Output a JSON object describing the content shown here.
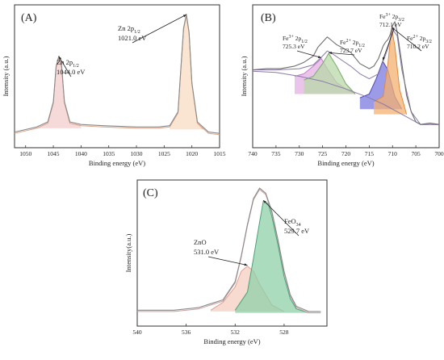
{
  "chart_data": [
    {
      "type": "line",
      "panel_label": "(A)",
      "xlabel": "Binding energy (eV)",
      "ylabel": "Intensity (a.u.)",
      "xlim": [
        1052,
        1015
      ],
      "ylim": [
        0,
        100
      ],
      "xticks": [
        "1050",
        "1045",
        "1040",
        "1035",
        "1030",
        "1025",
        "1020",
        "1015"
      ],
      "series": [
        {
          "role": "measured",
          "color": "#8a8a8a",
          "x": [
            1052,
            1048,
            1046,
            1045,
            1044.5,
            1044,
            1043.5,
            1043,
            1042,
            1040,
            1036,
            1030,
            1026,
            1024,
            1022.5,
            1022,
            1021.5,
            1021,
            1020.5,
            1020,
            1019,
            1017,
            1015
          ],
          "y": [
            6,
            10,
            14,
            30,
            58,
            66,
            58,
            30,
            14,
            12,
            11,
            10,
            10,
            11,
            22,
            55,
            88,
            99,
            85,
            45,
            14,
            6,
            5
          ]
        },
        {
          "role": "fit",
          "color": "#d9a58a",
          "x": [
            1052,
            1048,
            1046,
            1045,
            1044.5,
            1044,
            1043.5,
            1043,
            1042,
            1040,
            1036,
            1030,
            1026,
            1024,
            1022.5,
            1022,
            1021.5,
            1021,
            1020.5,
            1020,
            1019,
            1017,
            1015
          ],
          "y": [
            5,
            9,
            13,
            29,
            57,
            65,
            57,
            29,
            13,
            11,
            10,
            9,
            9,
            10,
            21,
            54,
            87,
            98,
            84,
            44,
            13,
            5,
            4
          ]
        },
        {
          "role": "component",
          "color": "#e8b4b4",
          "fill": "#f3cccc",
          "x": [
            1048,
            1046,
            1045,
            1044.5,
            1044,
            1043.5,
            1043,
            1042,
            1040
          ],
          "y": [
            9,
            13,
            29,
            57,
            65,
            57,
            29,
            13,
            11
          ]
        },
        {
          "role": "component",
          "color": "#f0c7a0",
          "fill": "#f7dcc3",
          "x": [
            1024,
            1022.5,
            1022,
            1021.5,
            1021,
            1020.5,
            1020,
            1019,
            1018
          ],
          "y": [
            10,
            21,
            54,
            87,
            98,
            84,
            44,
            13,
            8
          ]
        }
      ],
      "annotations": [
        {
          "base": "Zn 2p",
          "sub": "1/2",
          "value": "1044.0 eV",
          "x": 1044.0,
          "y": 65
        },
        {
          "base": "Zn 2p",
          "sub": "1/2",
          "value": "1021.0 eV",
          "x": 1021.0,
          "y": 98
        }
      ]
    },
    {
      "type": "line",
      "panel_label": "(B)",
      "xlabel": "Binding energy (eV)",
      "ylabel": "Intensity (a.u.)",
      "xlim": [
        740,
        700
      ],
      "ylim": [
        0,
        100
      ],
      "xticks": [
        "740",
        "735",
        "730",
        "725",
        "720",
        "715",
        "710",
        "705",
        "700"
      ],
      "series": [
        {
          "role": "measured",
          "color": "#6e6e6e",
          "x": [
            740,
            737,
            734,
            731,
            729,
            727,
            726,
            725,
            724,
            723,
            722,
            721,
            719,
            717,
            715,
            714,
            713,
            712,
            711.5,
            711,
            710.5,
            710,
            709.5,
            709,
            708,
            707,
            706,
            705,
            704,
            702,
            700
          ],
          "y": [
            55,
            56,
            56,
            58,
            61,
            66,
            73,
            77,
            81,
            78,
            75,
            73,
            69,
            60,
            56,
            58,
            64,
            74,
            77,
            79,
            83,
            90,
            93,
            85,
            60,
            35,
            22,
            14,
            12,
            13,
            12
          ]
        },
        {
          "role": "envelope",
          "color": "#8a7aa8",
          "x": [
            740,
            735,
            730,
            727,
            725,
            724,
            723,
            721,
            719,
            717,
            715,
            713,
            712,
            711,
            710,
            709,
            708,
            706,
            704,
            702,
            700
          ],
          "y": [
            55,
            55,
            56,
            59,
            66,
            70,
            68,
            63,
            58,
            52,
            48,
            52,
            62,
            72,
            87,
            82,
            55,
            22,
            12,
            12,
            12
          ]
        },
        {
          "role": "background",
          "color": "#8a7aa8",
          "x": [
            740,
            735,
            730,
            725,
            720,
            715,
            712,
            710,
            708,
            706,
            704,
            702,
            700
          ],
          "y": [
            54,
            53,
            50,
            46,
            40,
            33,
            28,
            24,
            20,
            16,
            12,
            12,
            12
          ]
        },
        {
          "role": "component",
          "color": "#c77ac7",
          "fill": "#e3b0e3",
          "x": [
            731,
            729,
            727,
            725.3,
            724,
            722,
            720,
            718
          ],
          "y": [
            50,
            52,
            58,
            64,
            56,
            45,
            40,
            36
          ]
        },
        {
          "role": "component",
          "color": "#7aaa6a",
          "fill": "#b8d8a8",
          "x": [
            729,
            727,
            725,
            723.7,
            722,
            720,
            718
          ],
          "y": [
            47,
            50,
            60,
            68,
            58,
            44,
            36
          ]
        },
        {
          "role": "component",
          "color": "#4a4ab8",
          "fill": "#7a7ae0",
          "x": [
            717,
            715,
            713.5,
            712.1,
            711,
            709.5,
            708
          ],
          "y": [
            33,
            36,
            48,
            62,
            55,
            34,
            24
          ]
        },
        {
          "role": "component",
          "color": "#e08a40",
          "fill": "#f4b070",
          "x": [
            714,
            712,
            711,
            710.2,
            709.5,
            708.5,
            707
          ],
          "y": [
            30,
            34,
            60,
            88,
            74,
            40,
            20
          ]
        }
      ],
      "annotations": [
        {
          "base": "Fe",
          "sup": "3+",
          "mid": " 2p",
          "sub": "1/2",
          "value": "725.3 eV",
          "x": 725.3,
          "y": 64
        },
        {
          "base": "Fe",
          "sup": "2+",
          "mid": " 2p",
          "sub": "1/2",
          "value": "723.7 eV",
          "x": 723.7,
          "y": 68
        },
        {
          "base": "Fe",
          "sup": "3+",
          "mid": " 2p",
          "sub": "3/2",
          "value": "712.1 eV",
          "x": 712.1,
          "y": 62
        },
        {
          "base": "Fe",
          "sup": "2+",
          "mid": " 2p",
          "sub": "3/2",
          "value": "710.2 eV",
          "x": 710.2,
          "y": 88
        }
      ]
    },
    {
      "type": "line",
      "panel_label": "(C)",
      "xlabel": "Binding energy (eV)",
      "ylabel": "Intensity(a.u.)",
      "xlim": [
        540,
        524.5
      ],
      "ylim": [
        0,
        100
      ],
      "xticks": [
        "540",
        "536",
        "532",
        "528"
      ],
      "series": [
        {
          "role": "measured",
          "color": "#8a8a8a",
          "x": [
            540,
            537,
            535,
            533,
            532,
            531.5,
            531,
            530.5,
            530,
            529.5,
            529,
            528.5,
            528,
            527.5,
            527,
            526,
            525
          ],
          "y": [
            6,
            6,
            8,
            14,
            28,
            48,
            72,
            92,
            100,
            96,
            82,
            60,
            36,
            18,
            9,
            5,
            5
          ]
        },
        {
          "role": "envelope",
          "color": "#c9a0a0",
          "x": [
            540,
            537,
            535,
            533,
            532,
            531.5,
            531,
            530.5,
            530,
            529.5,
            529,
            528.5,
            528,
            527.5,
            527,
            526,
            525
          ],
          "y": [
            5,
            5,
            7,
            13,
            27,
            47,
            71,
            91,
            99,
            95,
            81,
            59,
            35,
            17,
            8,
            4,
            4
          ]
        },
        {
          "role": "component",
          "color": "#e0a090",
          "fill": "#f4cfc2",
          "x": [
            534,
            533,
            532,
            531.5,
            531,
            530.5,
            530,
            529,
            528
          ],
          "y": [
            6,
            12,
            24,
            36,
            40,
            36,
            26,
            10,
            5
          ]
        },
        {
          "role": "component",
          "color": "#4aa37a",
          "fill": "#8fd0a8",
          "x": [
            532,
            531,
            530.5,
            530,
            529.7,
            529.3,
            529,
            528.5,
            528,
            527.5,
            527,
            526
          ],
          "y": [
            6,
            20,
            46,
            74,
            90,
            88,
            78,
            56,
            32,
            15,
            7,
            4
          ]
        }
      ],
      "annotations": [
        {
          "base": "ZnO",
          "value": "531.0 eV",
          "x": 531.0,
          "y": 40
        },
        {
          "base": "Fe",
          "sub": "3",
          "mid": "O",
          "sub2": "4",
          "value": "529.7 eV",
          "x": 529.7,
          "y": 90
        }
      ]
    }
  ]
}
